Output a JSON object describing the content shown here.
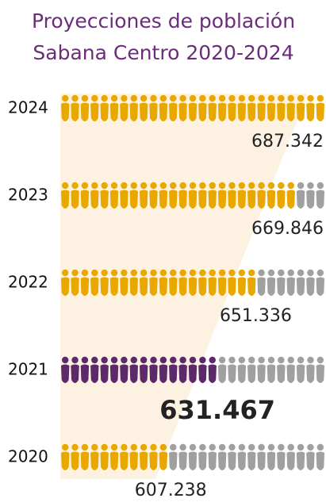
{
  "chart_data": {
    "type": "pictogram",
    "title": [
      "Proyecciones de población",
      "Sabana Centro 2020-2024"
    ],
    "categories": [
      "2024",
      "2023",
      "2022",
      "2021",
      "2020"
    ],
    "values": [
      687342,
      669846,
      651336,
      631467,
      607238
    ],
    "value_labels": [
      "687.342",
      "669.846",
      "651.336",
      "631.467",
      "607.238"
    ],
    "xlim": [
      550000,
      687342
    ],
    "highlight": "2021",
    "color": "#e8a800",
    "highlight_color": "#5c2a6b",
    "empty_color": "#a0a0a0",
    "title_color": "#6b2c7a"
  }
}
